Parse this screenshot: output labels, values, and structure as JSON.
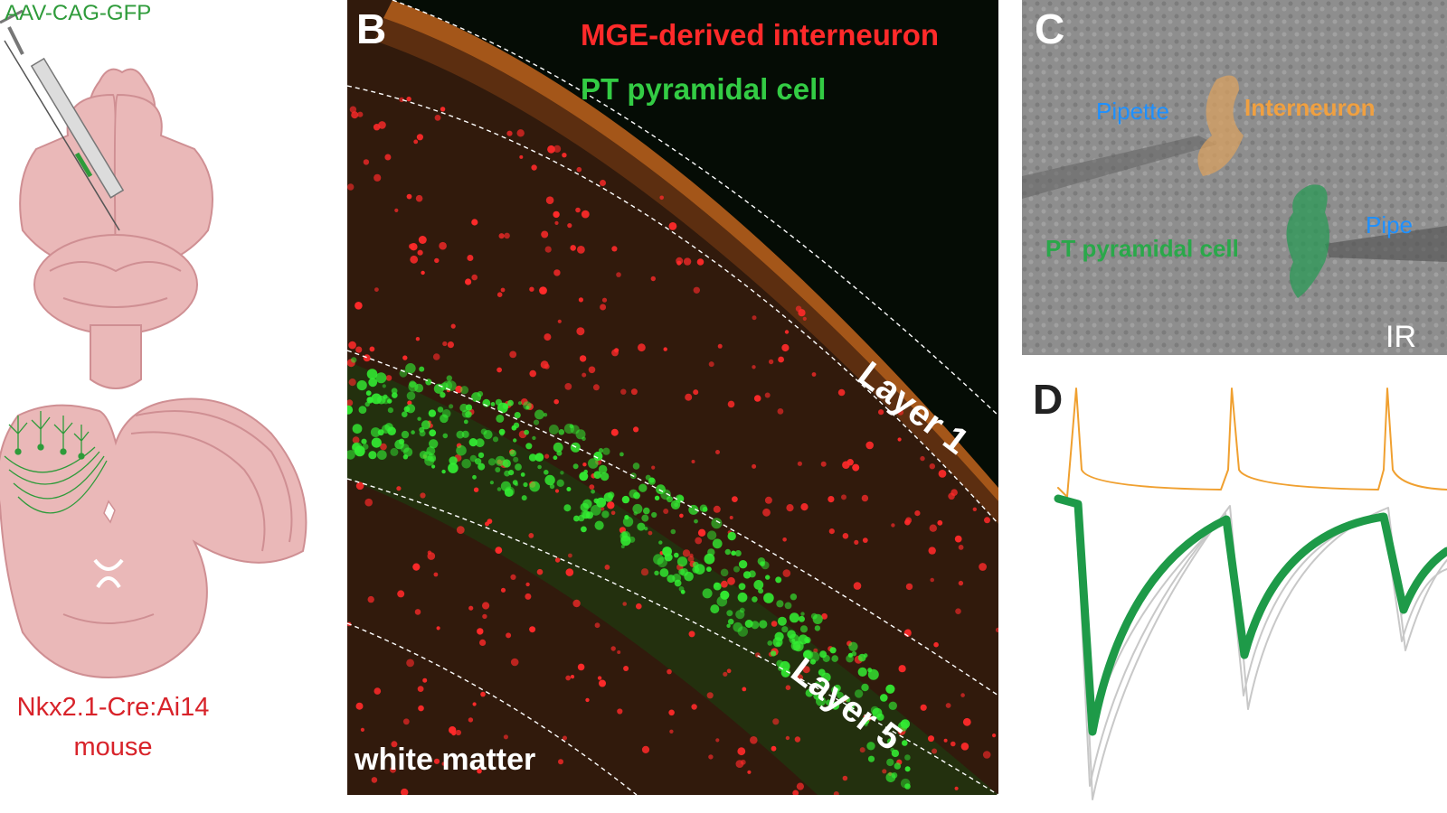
{
  "panel_a": {
    "injection_label": "AAV-CAG-GFP",
    "mouse_line": "Nkx2.1-Cre:Ai14",
    "mouse_word": "mouse",
    "colors": {
      "green": "#2e9b3a",
      "red": "#d8232a",
      "tissue": "#eab8b8",
      "tissue_dark": "#cf8f93"
    }
  },
  "panel_b": {
    "letter": "B",
    "legend_red": "MGE-derived interneuron",
    "legend_green": "PT pyramidal cell",
    "layer1": "Layer 1",
    "layer5": "Layer 5",
    "white_matter": "white matter",
    "colors": {
      "red": "#ff2a2a",
      "green": "#33ee33",
      "bg": "#050c05"
    }
  },
  "panel_c": {
    "letter": "C",
    "pipette_1": "Pipette",
    "interneuron": "Interneuron",
    "pipette_2": "Pipe",
    "pt_cell": "PT pyramidal cell",
    "mode": "IR",
    "colors": {
      "blue": "#1e90ff",
      "orange": "#f0a040",
      "green": "#2aa84a"
    }
  },
  "panel_d": {
    "letter": "D",
    "colors": {
      "spike": "#f0a030",
      "trace": "#1e9a48",
      "trial": "#c8c8c8"
    }
  }
}
